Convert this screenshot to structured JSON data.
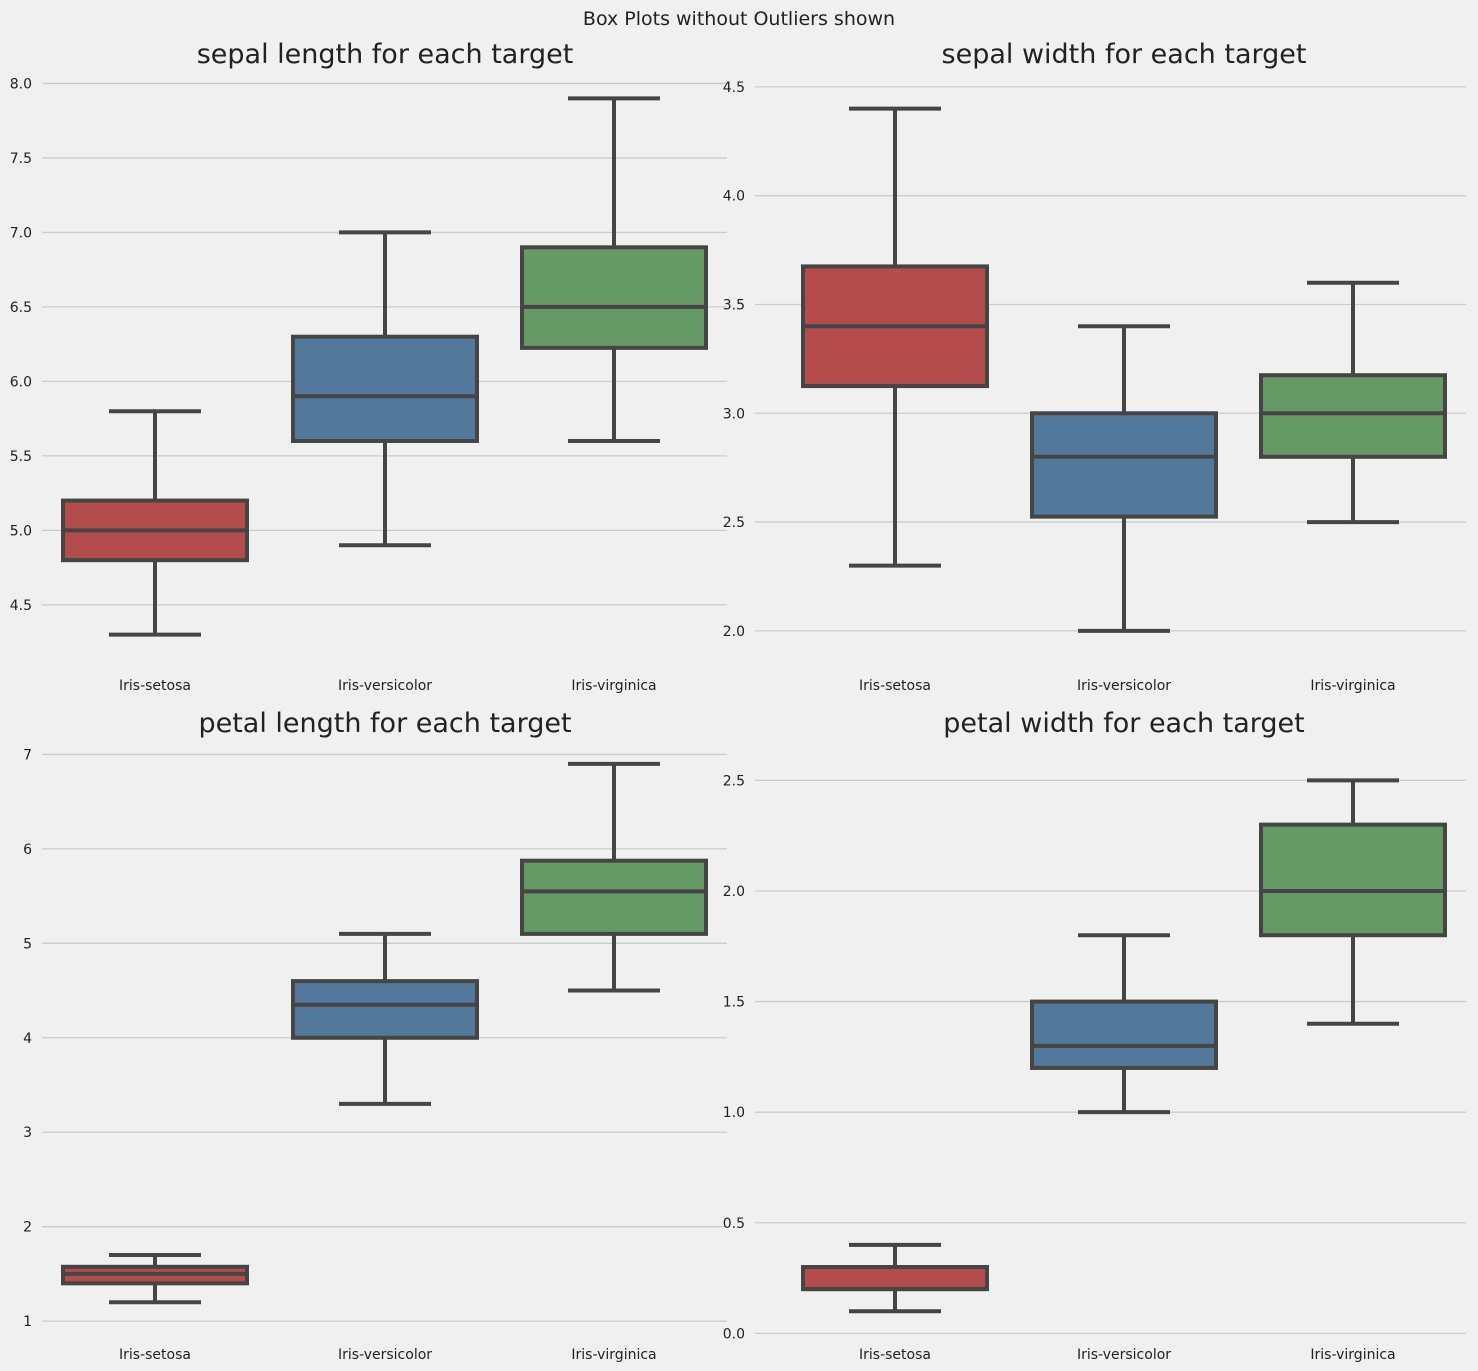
{
  "suptitle": "Box Plots without Outliers shown",
  "colors": {
    "Iris-setosa": "#b34d4d",
    "Iris-versicolor": "#547899",
    "Iris-virginica": "#669966",
    "lines": "#454545",
    "grid": "#cbcbcb",
    "background": "#f0f0f0"
  },
  "chart_data": [
    {
      "type": "box",
      "title": "sepal length for each target",
      "categories": [
        "Iris-setosa",
        "Iris-versicolor",
        "Iris-virginica"
      ],
      "ylim": [
        4.15,
        8.05
      ],
      "yticks": [
        4.5,
        5.0,
        5.5,
        6.0,
        6.5,
        7.0,
        7.5,
        8.0
      ],
      "ytick_labels": [
        "4.5",
        "5.0",
        "5.5",
        "6.0",
        "6.5",
        "7.0",
        "7.5",
        "8.0"
      ],
      "boxes": [
        {
          "min": 4.3,
          "q1": 4.8,
          "median": 5.0,
          "q3": 5.2,
          "max": 5.8
        },
        {
          "min": 4.9,
          "q1": 5.6,
          "median": 5.9,
          "q3": 6.3,
          "max": 7.0
        },
        {
          "min": 5.6,
          "q1": 6.225,
          "median": 6.5,
          "q3": 6.9,
          "max": 7.9
        }
      ]
    },
    {
      "type": "box",
      "title": "sepal width for each target",
      "categories": [
        "Iris-setosa",
        "Iris-versicolor",
        "Iris-virginica"
      ],
      "ylim": [
        1.88,
        4.55
      ],
      "yticks": [
        2.0,
        2.5,
        3.0,
        3.5,
        4.0,
        4.5
      ],
      "ytick_labels": [
        "2.0",
        "2.5",
        "3.0",
        "3.5",
        "4.0",
        "4.5"
      ],
      "boxes": [
        {
          "min": 2.3,
          "q1": 3.125,
          "median": 3.4,
          "q3": 3.675,
          "max": 4.4
        },
        {
          "min": 2.0,
          "q1": 2.525,
          "median": 2.8,
          "q3": 3.0,
          "max": 3.4
        },
        {
          "min": 2.5,
          "q1": 2.8,
          "median": 3.0,
          "q3": 3.175,
          "max": 3.6
        }
      ]
    },
    {
      "type": "box",
      "title": "petal length for each target",
      "categories": [
        "Iris-setosa",
        "Iris-versicolor",
        "Iris-virginica"
      ],
      "ylim": [
        0.8,
        7.1
      ],
      "yticks": [
        1,
        2,
        3,
        4,
        5,
        6,
        7
      ],
      "ytick_labels": [
        "1",
        "2",
        "3",
        "4",
        "5",
        "6",
        "7"
      ],
      "boxes": [
        {
          "min": 1.2,
          "q1": 1.4,
          "median": 1.5,
          "q3": 1.575,
          "max": 1.7
        },
        {
          "min": 3.3,
          "q1": 4.0,
          "median": 4.35,
          "q3": 4.6,
          "max": 5.1
        },
        {
          "min": 4.5,
          "q1": 5.1,
          "median": 5.55,
          "q3": 5.875,
          "max": 6.9
        }
      ]
    },
    {
      "type": "box",
      "title": "petal width for each target",
      "categories": [
        "Iris-setosa",
        "Iris-versicolor",
        "Iris-virginica"
      ],
      "ylim": [
        -0.03,
        2.66
      ],
      "yticks": [
        0.0,
        0.5,
        1.0,
        1.5,
        2.0,
        2.5
      ],
      "ytick_labels": [
        "0.0",
        "0.5",
        "1.0",
        "1.5",
        "2.0",
        "2.5"
      ],
      "boxes": [
        {
          "min": 0.1,
          "q1": 0.2,
          "median": 0.2,
          "q3": 0.3,
          "max": 0.4
        },
        {
          "min": 1.0,
          "q1": 1.2,
          "median": 1.3,
          "q3": 1.5,
          "max": 1.8
        },
        {
          "min": 1.4,
          "q1": 1.8,
          "median": 2.0,
          "q3": 2.3,
          "max": 2.5
        }
      ]
    }
  ]
}
